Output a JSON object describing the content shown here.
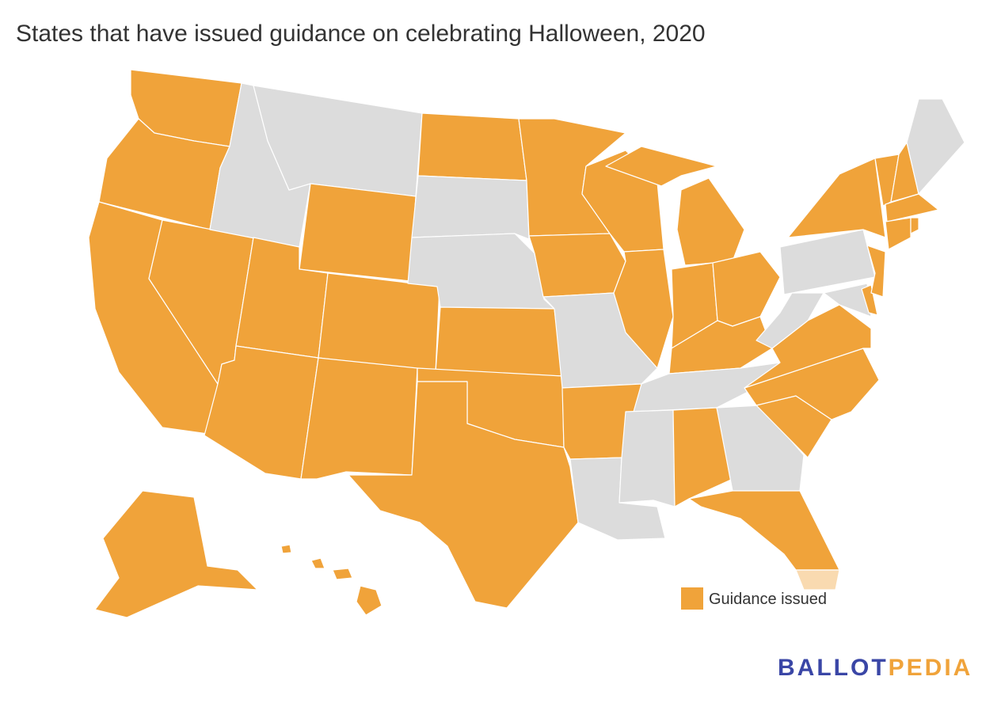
{
  "header": {
    "title": "States that have issued guidance on celebrating Halloween, 2020"
  },
  "legend": {
    "label": "Guidance issued",
    "color": "#f0a33a"
  },
  "map": {
    "issued_color": "#f0a33a",
    "other_color": "#dcdcdc",
    "border_color": "#ffffff"
  },
  "logo": {
    "part1": "BALLOT",
    "part1_color": "#3a46a6",
    "part2": "PEDIA",
    "part2_color": "#f0a33a"
  }
}
